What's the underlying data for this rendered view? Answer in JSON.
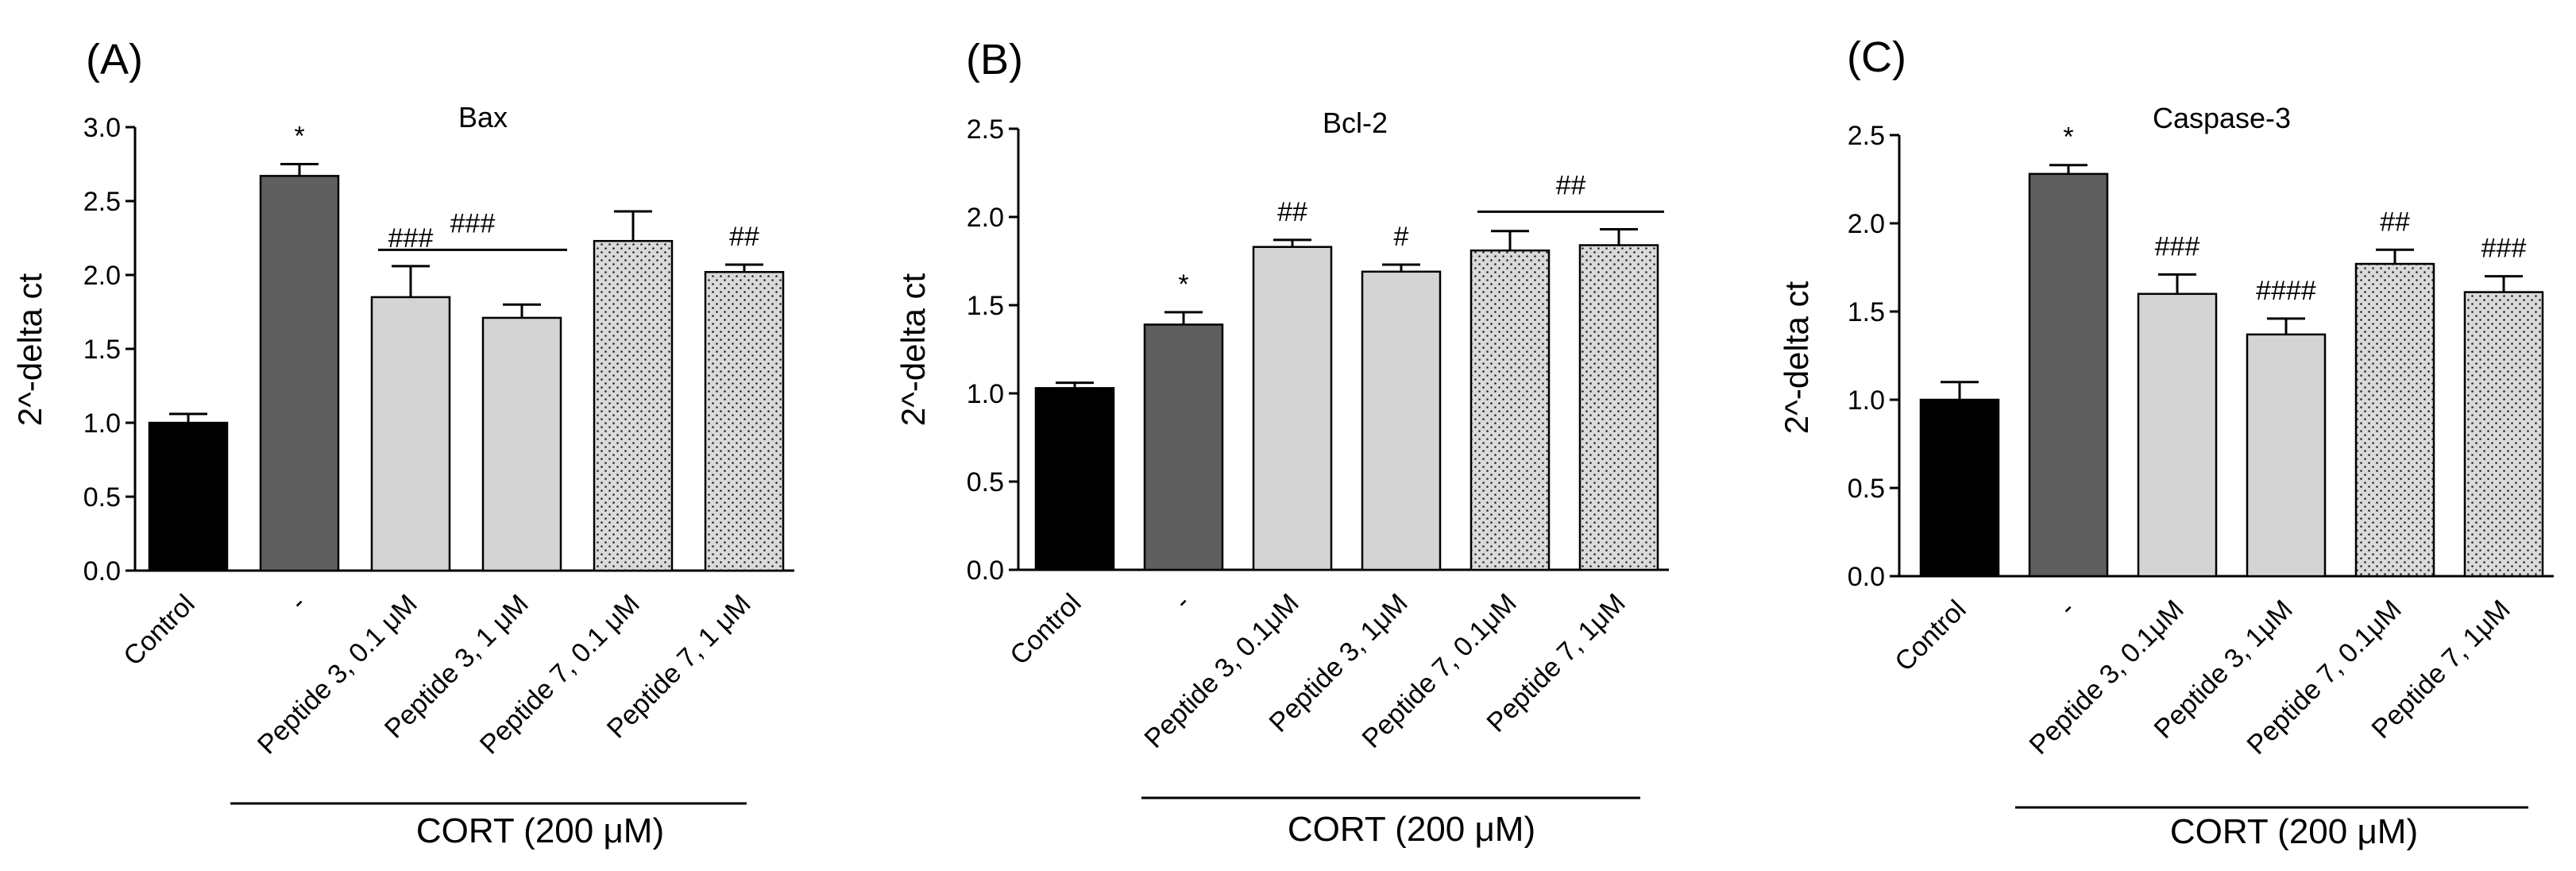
{
  "chart_data": [
    {
      "type": "bar",
      "panel": "(A)",
      "title": "Bax",
      "ylabel": "2^-delta ct",
      "ylim": [
        0,
        3.0
      ],
      "yticks": [
        "0.0",
        "0.5",
        "1.0",
        "1.5",
        "2.0",
        "2.5",
        "3.0"
      ],
      "categories": [
        "Control",
        "-",
        "Peptide 3, 0.1 μM",
        "Peptide 3, 1 μM",
        "Peptide 7, 0.1 μM",
        "Peptide 7, 1 μM"
      ],
      "values": [
        1.0,
        2.67,
        1.85,
        1.71,
        2.23,
        2.02
      ],
      "errors": [
        0.06,
        0.08,
        0.21,
        0.09,
        0.2,
        0.05
      ],
      "significance": [
        "",
        "*",
        "###",
        "",
        "",
        "##"
      ],
      "group_bracket": {
        "label": "###",
        "from": 2,
        "to": 3,
        "y": 2.17
      },
      "group_label": "CORT (200 μM)"
    },
    {
      "type": "bar",
      "panel": "(B)",
      "title": "Bcl-2",
      "ylabel": "2^-delta ct",
      "ylim": [
        0,
        2.5
      ],
      "yticks": [
        "0.0",
        "0.5",
        "1.0",
        "1.5",
        "2.0",
        "2.5"
      ],
      "categories": [
        "Control",
        "-",
        "Peptide 3, 0.1μM",
        "Peptide 3, 1μM",
        "Peptide 7, 0.1μM",
        "Peptide 7, 1μM"
      ],
      "values": [
        1.03,
        1.39,
        1.83,
        1.69,
        1.81,
        1.84
      ],
      "errors": [
        0.03,
        0.07,
        0.04,
        0.04,
        0.11,
        0.09
      ],
      "significance": [
        "",
        "*",
        "##",
        "#",
        "",
        ""
      ],
      "group_bracket": {
        "label": "##",
        "from": 4,
        "to": 5,
        "y": 2.03
      },
      "group_label": "CORT (200 μM)"
    },
    {
      "type": "bar",
      "panel": "(C)",
      "title": "Caspase-3",
      "ylabel": "2^-delta ct",
      "ylim": [
        0,
        2.5
      ],
      "yticks": [
        "0.0",
        "0.5",
        "1.0",
        "1.5",
        "2.0",
        "2.5"
      ],
      "categories": [
        "Control",
        "-",
        "Peptide 3, 0.1μM",
        "Peptide 3, 1μM",
        "Peptide 7, 0.1μM",
        "Peptide 7, 1μM"
      ],
      "values": [
        1.0,
        2.28,
        1.6,
        1.37,
        1.77,
        1.61
      ],
      "errors": [
        0.1,
        0.05,
        0.11,
        0.09,
        0.08,
        0.09
      ],
      "significance": [
        "",
        "*",
        "###",
        "####",
        "##",
        "###"
      ],
      "group_bracket": null,
      "group_label": "CORT (200 μM)"
    }
  ],
  "fill_colors": [
    "#000000",
    "#5f5f5f",
    "#d4d4d4",
    "#d4d4d4",
    "#d9d9d9",
    "#d9d9d9"
  ],
  "dotted": [
    false,
    false,
    false,
    false,
    true,
    true
  ]
}
